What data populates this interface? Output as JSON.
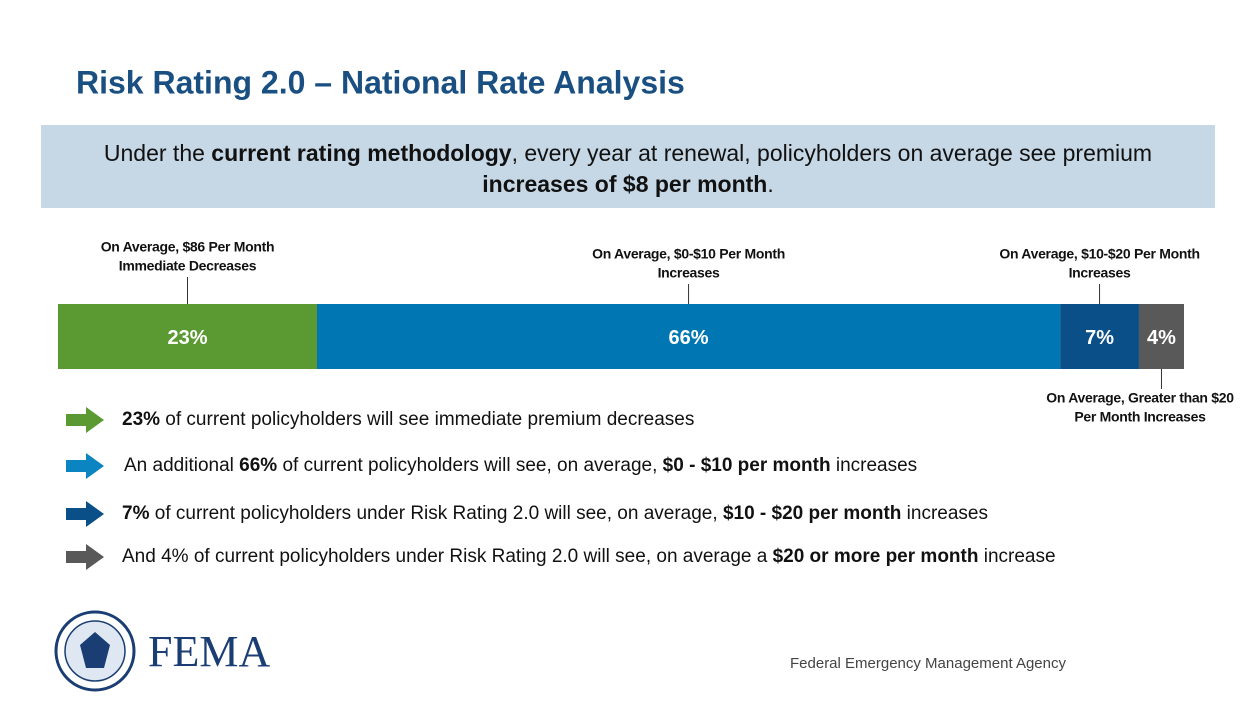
{
  "title": "Risk Rating 2.0 – National Rate Analysis",
  "banner": [
    [
      {
        "text": "Under the ",
        "bold": false
      },
      {
        "text": "current rating methodology",
        "bold": true
      },
      {
        "text": ", every year at renewal, policyholders on average see premium",
        "bold": false
      }
    ],
    [
      {
        "text": "increases of $8 per month",
        "bold": true
      },
      {
        "text": ".",
        "bold": false
      }
    ]
  ],
  "chart_data": {
    "type": "bar",
    "orientation": "horizontal",
    "stacked": true,
    "values": [
      23,
      66,
      7,
      4
    ],
    "value_labels": [
      "23%",
      "66%",
      "7%",
      "4%"
    ],
    "colors": [
      "#5b9a32",
      "#0077b3",
      "#0b4f88",
      "#595959"
    ],
    "xlim": [
      0,
      100
    ],
    "annotations": [
      [
        "On Average, $86 Per Month",
        "Immediate Decreases"
      ],
      [
        "On Average, $0-$10 Per Month",
        "Increases"
      ],
      [
        "On Average, $10-$20 Per Month",
        "Increases"
      ],
      [
        "On Average, Greater than $20",
        "Per Month Increases"
      ]
    ],
    "annotation_side": [
      "above",
      "above",
      "above",
      "below"
    ]
  },
  "bullets": [
    {
      "color": "#5b9a32",
      "runs": [
        {
          "text": "23%",
          "bold": true
        },
        {
          "text": " of current policyholders will see immediate premium decreases",
          "bold": false
        }
      ]
    },
    {
      "color": "#0a85c2",
      "runs": [
        {
          "text": "An additional ",
          "bold": false
        },
        {
          "text": "66%",
          "bold": true
        },
        {
          "text": " of current policyholders will see, on average, ",
          "bold": false
        },
        {
          "text": "$0 - $10 per month",
          "bold": true
        },
        {
          "text": " increases",
          "bold": false
        }
      ]
    },
    {
      "color": "#0b4f88",
      "runs": [
        {
          "text": "7%",
          "bold": true
        },
        {
          "text": " of current policyholders under Risk Rating 2.0 will see, on average, ",
          "bold": false
        },
        {
          "text": "$10 - $20 per month",
          "bold": true
        },
        {
          "text": " increases",
          "bold": false
        }
      ]
    },
    {
      "color": "#595959",
      "runs": [
        {
          "text": "And 4% of current policyholders under Risk Rating 2.0 will see, on average a ",
          "bold": false
        },
        {
          "text": "$20 or more per month",
          "bold": true
        },
        {
          "text": " increase",
          "bold": false
        }
      ]
    }
  ],
  "footer": {
    "logo_text": "FEMA",
    "agency": "Federal Emergency Management Agency"
  }
}
